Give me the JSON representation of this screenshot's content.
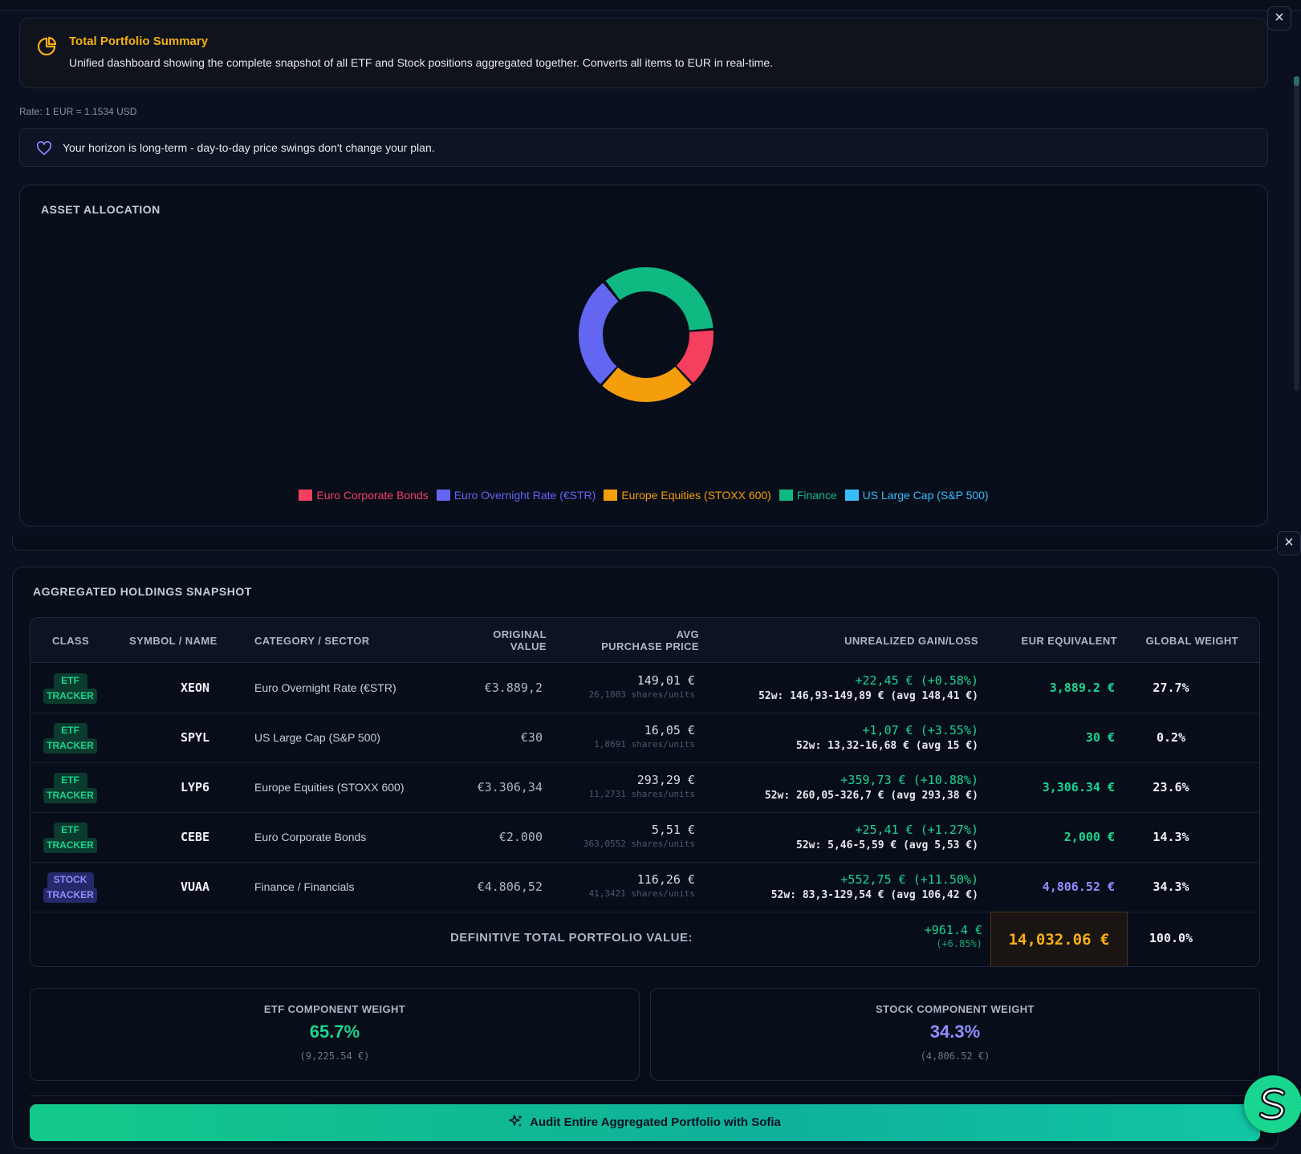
{
  "summary": {
    "title": "Total Portfolio Summary",
    "description": "Unified dashboard showing the complete snapshot of all ETF and Stock positions aggregated together. Converts all items to EUR in real-time."
  },
  "rate_text": "Rate: 1 EUR = 1.1534 USD",
  "horizon_text": "Your horizon is long-term - day-to-day price swings don't change your plan.",
  "allocation": {
    "title": "ASSET ALLOCATION",
    "chart_data": {
      "type": "pie",
      "categories": [
        "Euro Corporate Bonds",
        "Euro Overnight Rate (€STR)",
        "Europe Equities (STOXX 600)",
        "Finance",
        "US Large Cap (S&P 500)"
      ],
      "values": [
        14.3,
        27.7,
        23.6,
        34.3,
        0.2
      ],
      "colors": [
        "#f43f5e",
        "#6366f1",
        "#f59e0b",
        "#10b981",
        "#38bdf8"
      ],
      "legend_position": "bottom"
    },
    "legend": [
      {
        "label": "Euro Corporate Bonds",
        "color": "#f43f5e"
      },
      {
        "label": "Euro Overnight Rate (€STR)",
        "color": "#6366f1"
      },
      {
        "label": "Europe Equities (STOXX 600)",
        "color": "#f59e0b"
      },
      {
        "label": "Finance",
        "color": "#10b981"
      },
      {
        "label": "US Large Cap (S&P 500)",
        "color": "#38bdf8"
      }
    ]
  },
  "holdings": {
    "title": "AGGREGATED HOLDINGS SNAPSHOT",
    "headers": {
      "class": "CLASS",
      "symbol": "SYMBOL / NAME",
      "category": "CATEGORY / SECTOR",
      "original_1": "ORIGINAL",
      "original_2": "VALUE",
      "avg_1": "AVG",
      "avg_2": "PURCHASE PRICE",
      "gain": "UNREALIZED GAIN/LOSS",
      "eur": "EUR EQUIVALENT",
      "weight": "GLOBAL WEIGHT"
    },
    "rows": [
      {
        "type1": "ETF",
        "type2": "TRACKER",
        "symbol": "XEON",
        "category": "Euro Overnight Rate (€STR)",
        "original": "€3.889,2",
        "avg_price": "149,01 €",
        "units": "26,1003 shares/units",
        "gain": "+22,45 € (+0.58%)",
        "range": "52w: 146,93-149,89 € (avg 148,41 €)",
        "eur": "3,889.2 €",
        "weight": "27.7%"
      },
      {
        "type1": "ETF",
        "type2": "TRACKER",
        "symbol": "SPYL",
        "category": "US Large Cap (S&P 500)",
        "original": "€30",
        "avg_price": "16,05 €",
        "units": "1,8691 shares/units",
        "gain": "+1,07 € (+3.55%)",
        "range": "52w: 13,32-16,68 € (avg 15 €)",
        "eur": "30 €",
        "weight": "0.2%"
      },
      {
        "type1": "ETF",
        "type2": "TRACKER",
        "symbol": "LYP6",
        "category": "Europe Equities (STOXX 600)",
        "original": "€3.306,34",
        "avg_price": "293,29 €",
        "units": "11,2731 shares/units",
        "gain": "+359,73 € (+10.88%)",
        "range": "52w: 260,05-326,7 € (avg 293,38 €)",
        "eur": "3,306.34 €",
        "weight": "23.6%"
      },
      {
        "type1": "ETF",
        "type2": "TRACKER",
        "symbol": "CEBE",
        "category": "Euro Corporate Bonds",
        "original": "€2.000",
        "avg_price": "5,51 €",
        "units": "363,0552 shares/units",
        "gain": "+25,41 € (+1.27%)",
        "range": "52w: 5,46-5,59 € (avg 5,53 €)",
        "eur": "2,000 €",
        "weight": "14.3%"
      },
      {
        "type1": "STOCK",
        "type2": "TRACKER",
        "symbol": "VUAA",
        "category": "Finance / Financials",
        "original": "€4.806,52",
        "avg_price": "116,26 €",
        "units": "41,3421 shares/units",
        "gain": "+552,75 € (+11.50%)",
        "range": "52w: 83,3-129,54 € (avg 106,42 €)",
        "eur": "4,806.52 €",
        "weight": "34.3%"
      }
    ],
    "total": {
      "label": "DEFINITIVE TOTAL PORTFOLIO VALUE:",
      "gain": "+961.4 €",
      "gain_pct": "(+6.85%)",
      "eur": "14,032.06 €",
      "weight": "100.0%"
    }
  },
  "components": {
    "etf": {
      "title": "ETF COMPONENT WEIGHT",
      "value": "65.7%",
      "sub": "(9,225.54 €)"
    },
    "stock": {
      "title": "STOCK COMPONENT WEIGHT",
      "value": "34.3%",
      "sub": "(4,806.52 €)"
    }
  },
  "audit_button": "Audit Entire Aggregated Portfolio with Sofia",
  "colors": {
    "accent_gold": "#f5b014",
    "gain_green": "#19d58f",
    "stock_purple": "#8f8fff"
  }
}
